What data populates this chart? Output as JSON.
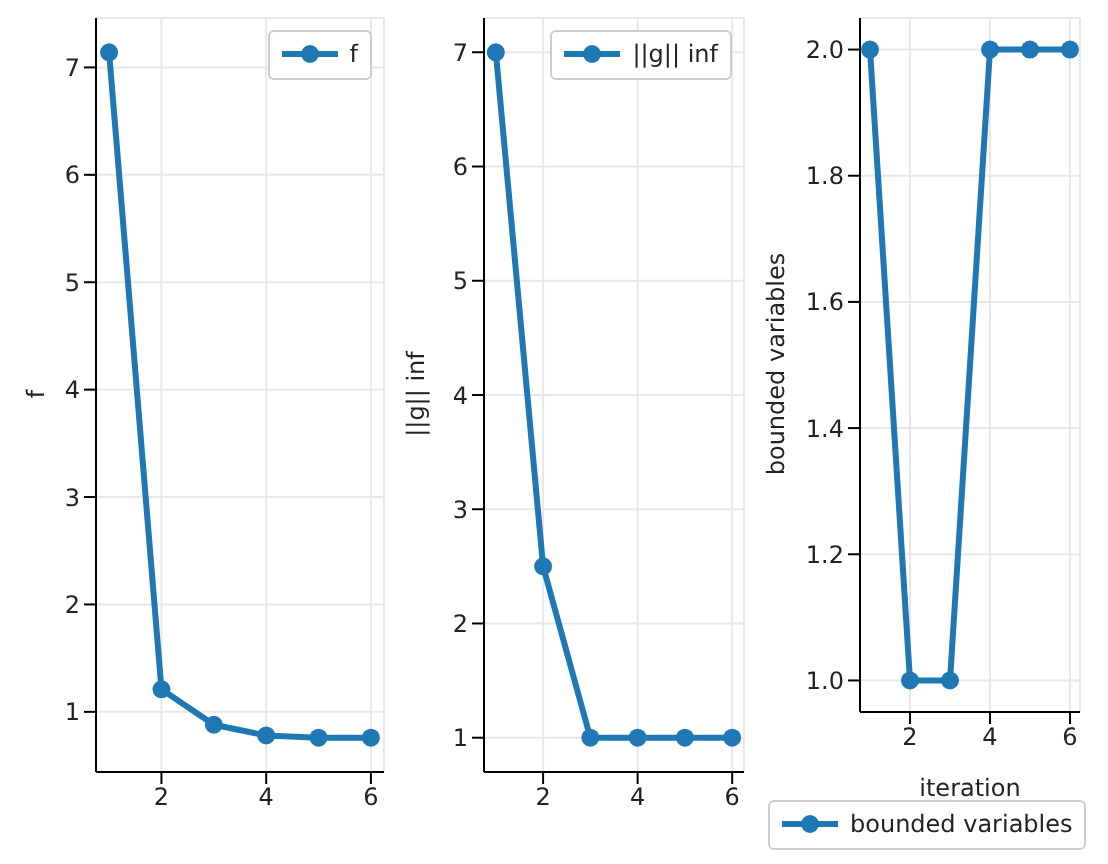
{
  "chart_data": [
    {
      "type": "line",
      "x": [
        1,
        2,
        3,
        4,
        5,
        6
      ],
      "series": [
        {
          "name": "f",
          "color": "#1f77b4",
          "values": [
            7.14,
            1.21,
            0.88,
            0.78,
            0.76,
            0.76
          ]
        }
      ],
      "xlim": [
        0.75,
        6.25
      ],
      "xticks": [
        2,
        4,
        6
      ],
      "ylim": [
        0.44,
        7.46
      ],
      "yticks": [
        1,
        2,
        3,
        4,
        5,
        6,
        7
      ],
      "ylabel": "f",
      "grid": true,
      "legend": "top right",
      "marker": "circle"
    },
    {
      "type": "line",
      "x": [
        1,
        2,
        3,
        4,
        5,
        6
      ],
      "series": [
        {
          "name": "||g|| inf",
          "color": "#1f77b4",
          "values": [
            7,
            2.5,
            1,
            1,
            1,
            1
          ]
        }
      ],
      "xlim": [
        0.75,
        6.25
      ],
      "xticks": [
        2,
        4,
        6
      ],
      "ylim": [
        0.7,
        7.3
      ],
      "yticks": [
        1,
        2,
        3,
        4,
        5,
        6,
        7
      ],
      "ylabel": "||g|| inf",
      "grid": true,
      "legend": "top right",
      "marker": "circle"
    },
    {
      "type": "line",
      "x": [
        1,
        2,
        3,
        4,
        5,
        6
      ],
      "series": [
        {
          "name": "bounded variables",
          "color": "#1f77b4",
          "values": [
            2,
            1,
            1,
            2,
            2,
            2
          ]
        }
      ],
      "xlim": [
        0.75,
        6.25
      ],
      "xticks": [
        2,
        4,
        6
      ],
      "ylim": [
        0.95,
        2.05
      ],
      "yticks": [
        {
          "value": 1,
          "label": "1.0"
        },
        {
          "value": 1.2,
          "label": "1.2"
        },
        {
          "value": 1.4,
          "label": "1.4"
        },
        {
          "value": 1.6,
          "label": "1.6"
        },
        {
          "value": 1.8,
          "label": "1.8"
        },
        {
          "value": 2,
          "label": "2.0"
        }
      ],
      "xlabel": "iteration",
      "ylabel": "bounded variables",
      "grid": true,
      "legend": "bottom",
      "marker": "circle"
    }
  ]
}
